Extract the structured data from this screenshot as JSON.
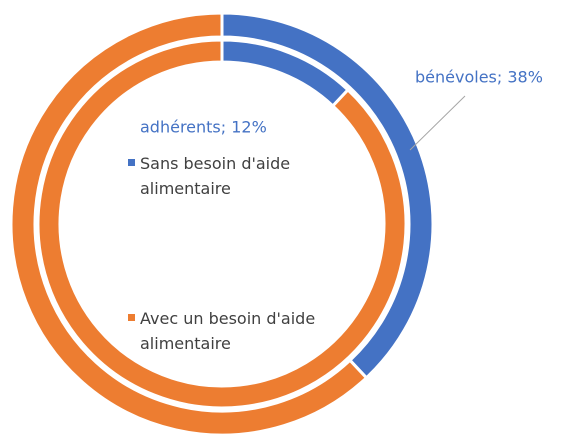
{
  "chart_data": {
    "type": "doughnut",
    "categories": [
      "Sans besoin d'aide alimentaire",
      "Avec un besoin d'aide alimentaire"
    ],
    "colors": [
      "#4472c4",
      "#ed7d31"
    ],
    "series": [
      {
        "values": [
          12,
          88
        ],
        "value_labels": [
          "adhérents; 12%",
          null
        ]
      },
      {
        "values": [
          38,
          62
        ],
        "value_labels": [
          "bénévoles; 38%",
          null
        ]
      }
    ],
    "legend": "inside"
  }
}
